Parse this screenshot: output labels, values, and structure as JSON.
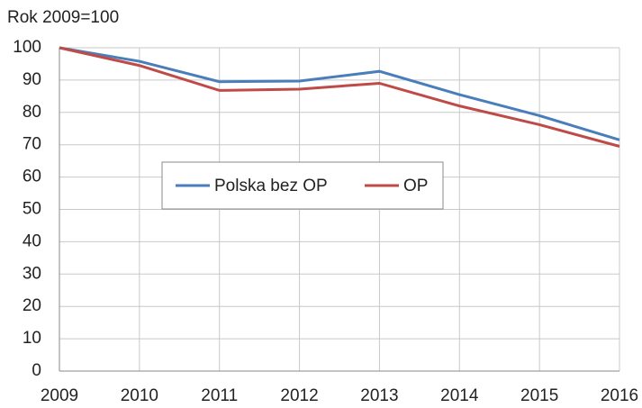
{
  "chart_data": {
    "type": "line",
    "title": "Rok 2009=100",
    "x": [
      2009,
      2010,
      2011,
      2012,
      2013,
      2014,
      2015,
      2016
    ],
    "series": [
      {
        "name": "Polska bez OP",
        "color": "#4a7ebb",
        "values": [
          100,
          95.8,
          89.5,
          89.7,
          92.7,
          85.5,
          79,
          71.5
        ]
      },
      {
        "name": "OP",
        "color": "#be4b48",
        "values": [
          100,
          94.5,
          86.8,
          87.2,
          89,
          82,
          76.2,
          69.5
        ]
      }
    ],
    "xlim": [
      2009,
      2016
    ],
    "xticks": [
      2009,
      2010,
      2011,
      2012,
      2013,
      2014,
      2015,
      2016
    ],
    "ylim": [
      0,
      100
    ],
    "yticks": [
      0,
      10,
      20,
      30,
      40,
      50,
      60,
      70,
      80,
      90,
      100
    ],
    "grid": true
  }
}
